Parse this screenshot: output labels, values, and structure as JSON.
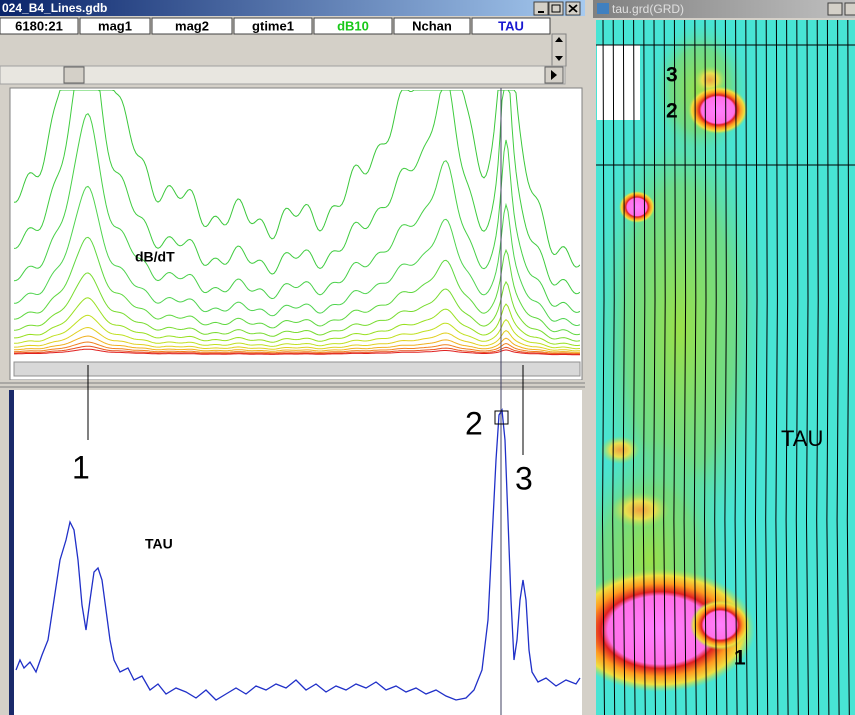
{
  "left_window": {
    "title": "024_B4_Lines.gdb",
    "columns": [
      "6180:21",
      "mag1",
      "mag2",
      "gtime1",
      "dB10",
      "Nchan",
      "TAU"
    ],
    "plots": [
      {
        "label": "dB/dT"
      },
      {
        "label": "TAU"
      }
    ],
    "markers": [
      "1",
      "2",
      "3"
    ]
  },
  "right_window": {
    "title": "tau.grd(GRD)",
    "labels": [
      "3",
      "2",
      "1",
      "TAU"
    ]
  }
}
